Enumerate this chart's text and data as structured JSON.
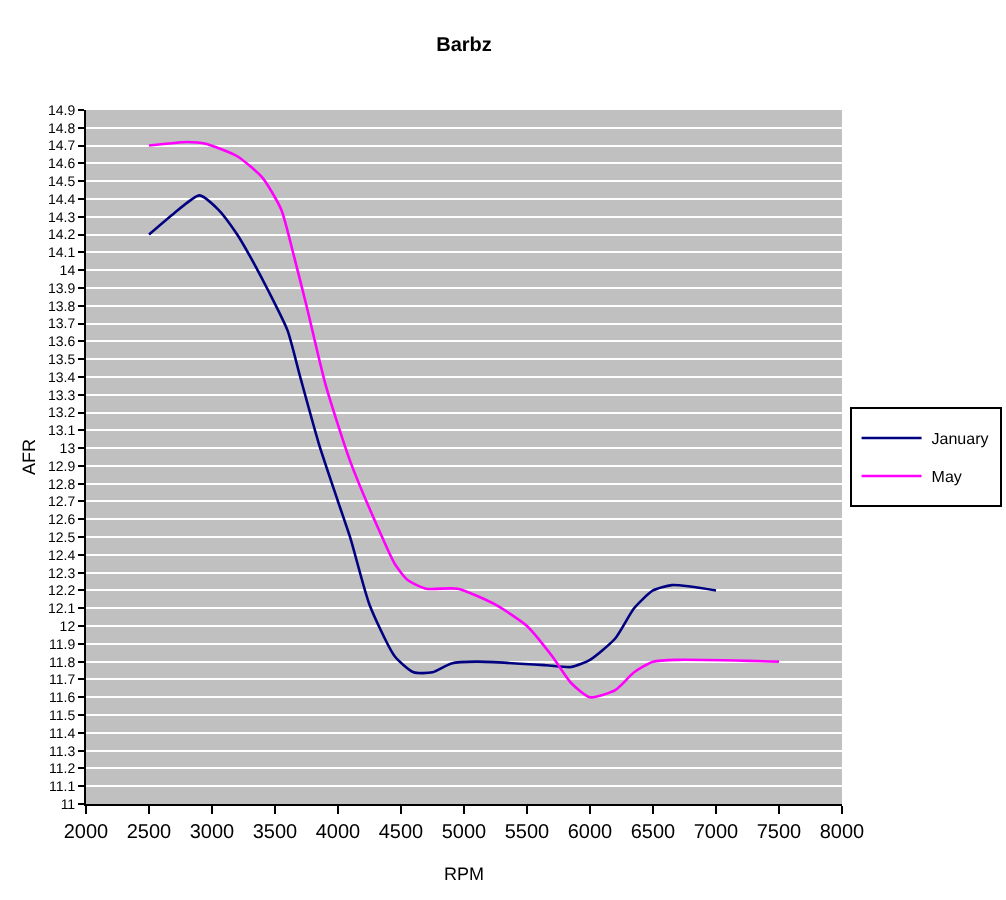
{
  "chart_data": {
    "type": "line",
    "title": "Barbz",
    "xlabel": "RPM",
    "ylabel": "AFR",
    "series": [
      {
        "name": "January",
        "color": "#000080",
        "x": [
          2500,
          2700,
          2900,
          3050,
          3200,
          3300,
          3450,
          3600,
          3700,
          3850,
          4000,
          4100,
          4250,
          4450,
          4600,
          4750,
          4900,
          5100,
          5650,
          5850,
          6000,
          6200,
          6350,
          6500,
          6650,
          7000
        ],
        "values": [
          14.2,
          14.32,
          14.42,
          14.34,
          14.2,
          14.08,
          13.88,
          13.66,
          13.4,
          13.02,
          12.7,
          12.49,
          12.12,
          11.83,
          11.74,
          11.74,
          11.79,
          11.8,
          11.78,
          11.77,
          11.81,
          11.93,
          12.1,
          12.2,
          12.23,
          12.2
        ]
      },
      {
        "name": "May",
        "color": "#ff00ff",
        "x": [
          2500,
          2800,
          2950,
          3200,
          3400,
          3550,
          3650,
          3750,
          3900,
          4100,
          4350,
          4450,
          4550,
          4700,
          4950,
          5250,
          5500,
          5700,
          5850,
          6000,
          6200,
          6350,
          6500,
          6700,
          7500
        ],
        "values": [
          14.7,
          14.72,
          14.71,
          14.64,
          14.52,
          14.34,
          14.08,
          13.8,
          13.36,
          12.92,
          12.5,
          12.35,
          12.26,
          12.21,
          12.21,
          12.12,
          12.0,
          11.83,
          11.68,
          11.6,
          11.64,
          11.74,
          11.8,
          11.81,
          11.8
        ]
      }
    ],
    "xlim": [
      2000,
      8000
    ],
    "xticks": [
      2000,
      2500,
      3000,
      3500,
      4000,
      4500,
      5000,
      5500,
      6000,
      6500,
      7000,
      7500,
      8000
    ],
    "ylim": [
      11,
      14.9
    ],
    "yticks": [
      11,
      11.1,
      11.2,
      11.3,
      11.4,
      11.5,
      11.6,
      11.7,
      11.8,
      11.9,
      12,
      12.1,
      12.2,
      12.3,
      12.4,
      12.5,
      12.6,
      12.7,
      12.8,
      12.9,
      13,
      13.1,
      13.2,
      13.3,
      13.4,
      13.5,
      13.6,
      13.7,
      13.8,
      13.9,
      14,
      14.1,
      14.2,
      14.3,
      14.4,
      14.5,
      14.6,
      14.7,
      14.8,
      14.9
    ],
    "grid": "y",
    "legend": "right"
  }
}
